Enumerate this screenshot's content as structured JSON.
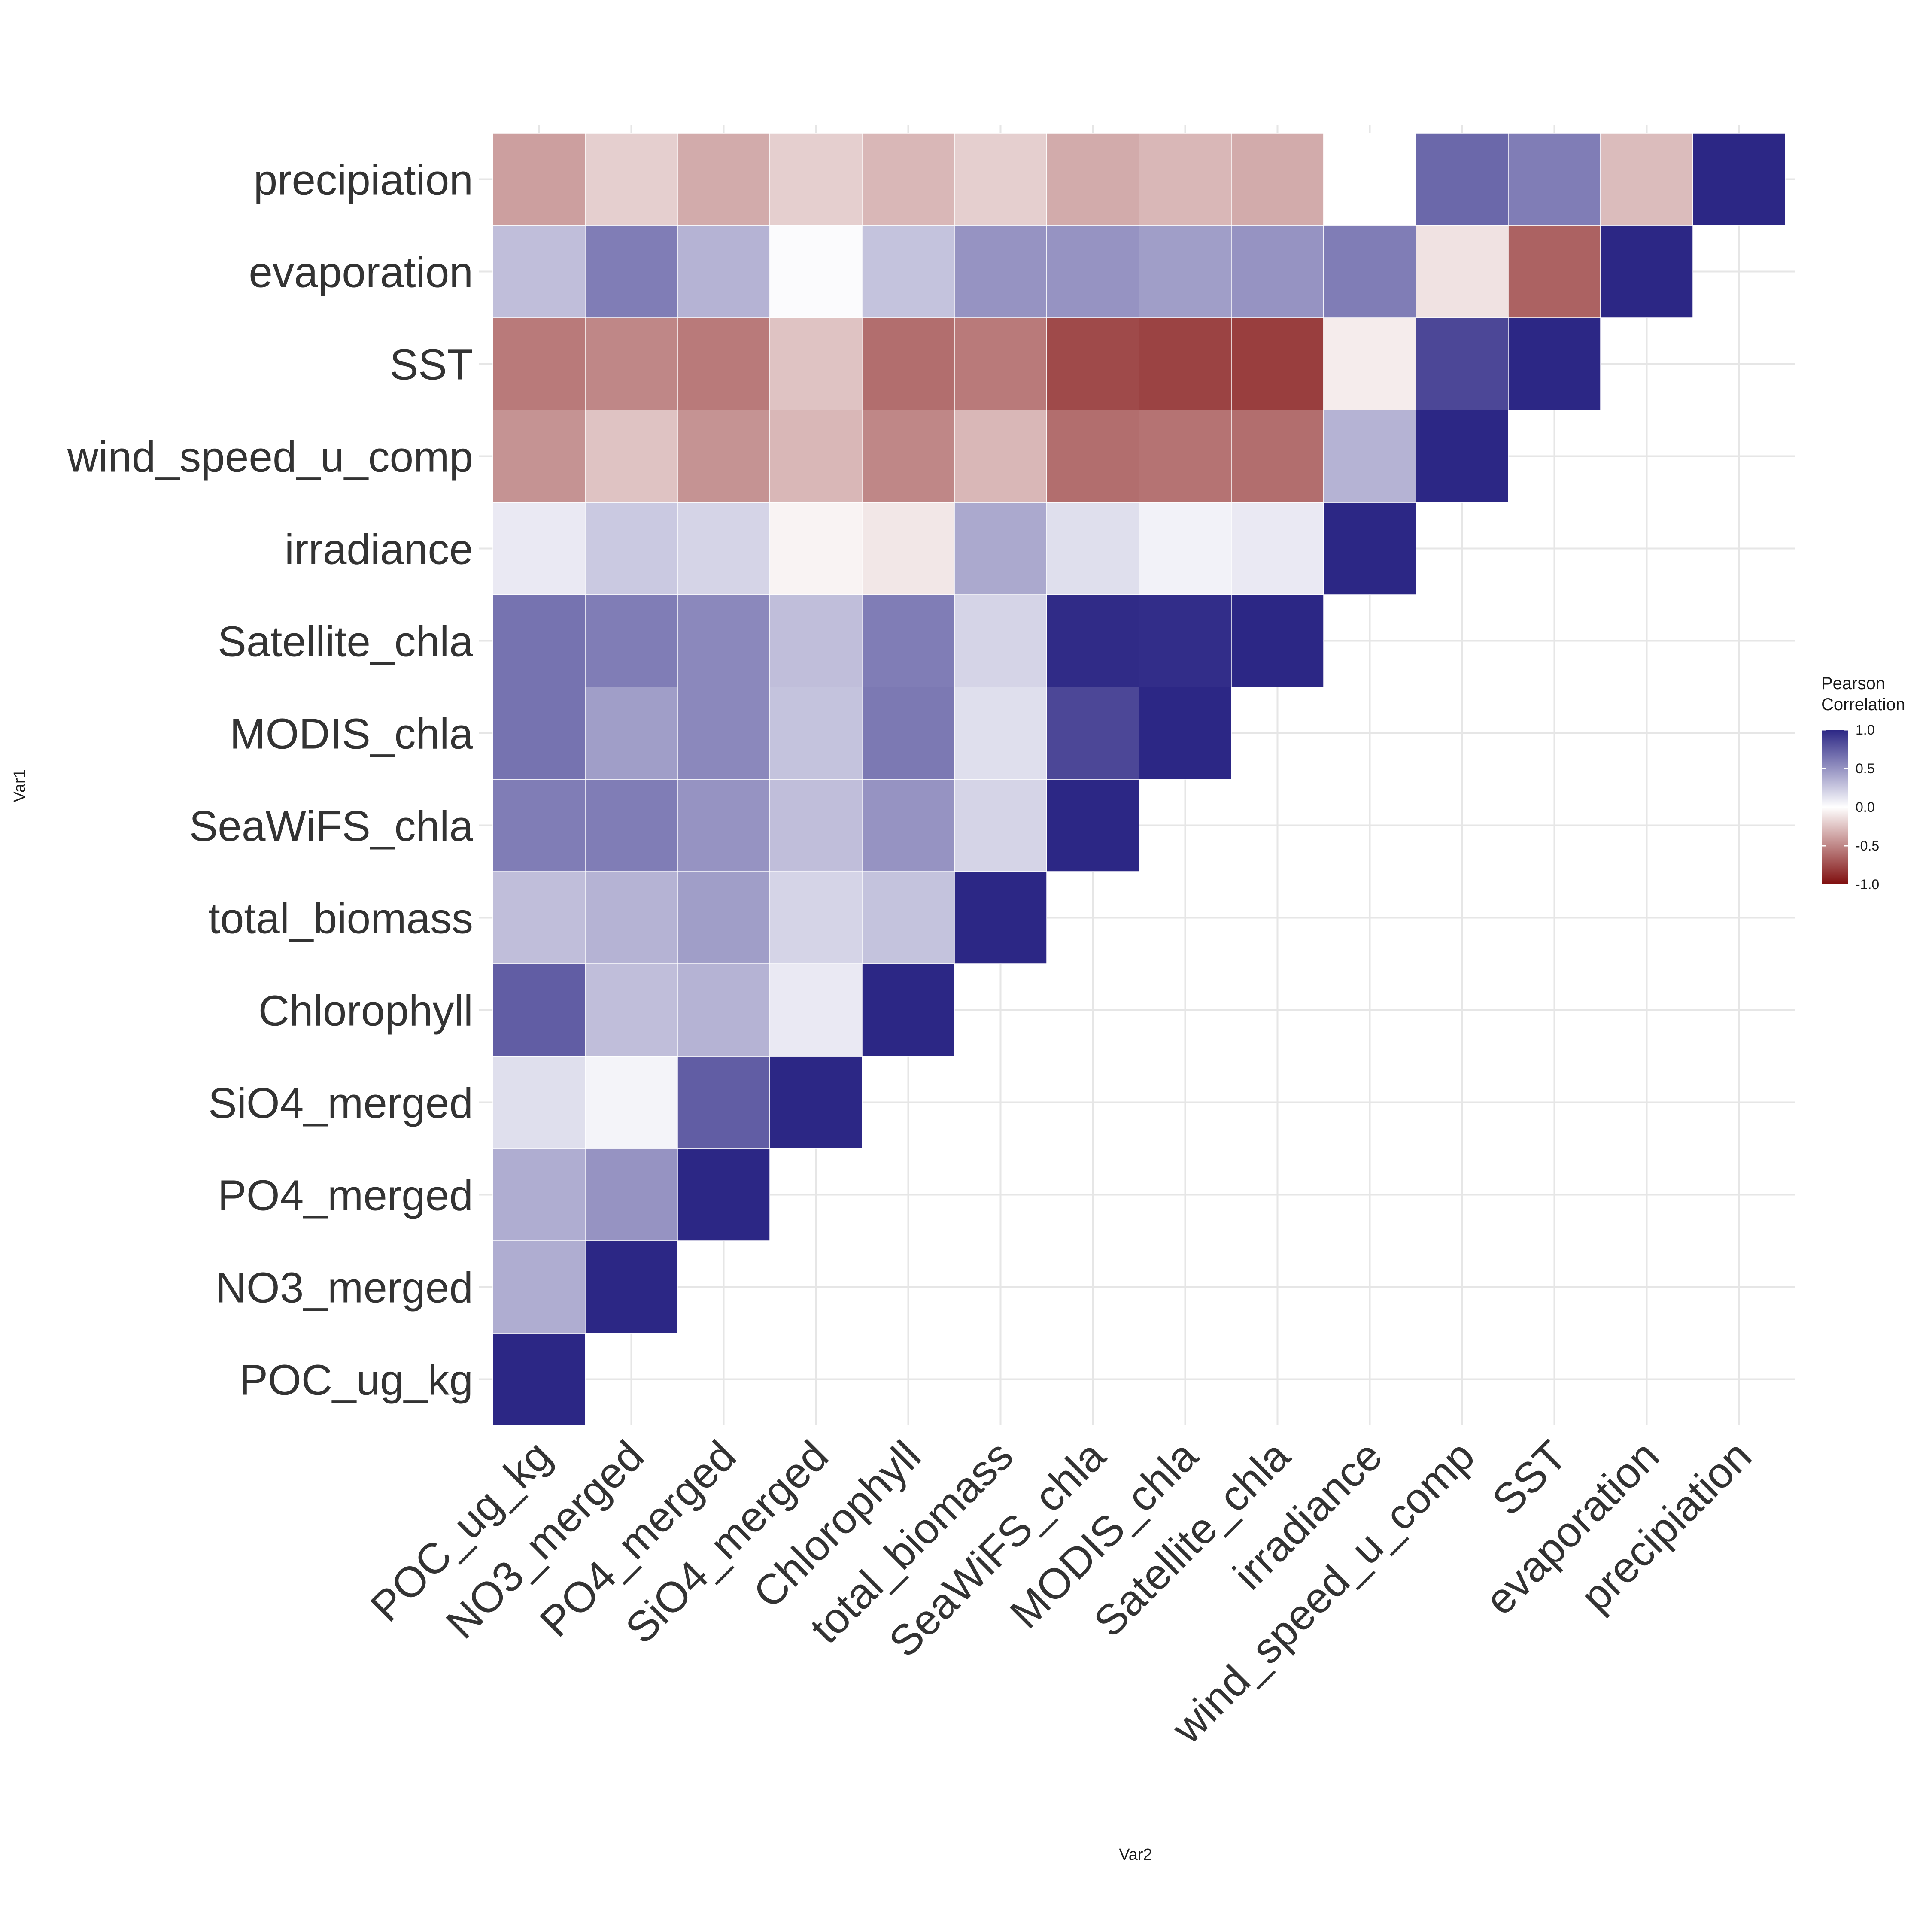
{
  "chart_data": {
    "type": "heatmap",
    "title": "",
    "xlabel": "Var2",
    "ylabel": "Var1",
    "variables": [
      "POC_ug_kg",
      "NO3_merged",
      "PO4_merged",
      "SiO4_merged",
      "Chlorophyll",
      "total_biomass",
      "SeaWiFS_chla",
      "MODIS_chla",
      "Satellite_chla",
      "irradiance",
      "wind_speed_u_comp",
      "SST",
      "evaporation",
      "precipiation"
    ],
    "triangle": "upper",
    "matrix": [
      [
        1.0,
        0.38,
        0.38,
        0.15,
        0.75,
        0.3,
        0.6,
        0.65,
        0.65,
        0.1,
        -0.45,
        -0.55,
        0.3,
        -0.4
      ],
      [
        null,
        1.0,
        0.5,
        0.05,
        0.3,
        0.35,
        0.6,
        0.45,
        0.6,
        0.25,
        -0.25,
        -0.5,
        0.6,
        -0.2
      ],
      [
        null,
        null,
        1.0,
        0.75,
        0.35,
        0.45,
        0.5,
        0.55,
        0.55,
        0.2,
        -0.45,
        -0.55,
        0.35,
        -0.35
      ],
      [
        null,
        null,
        null,
        1.0,
        0.1,
        0.2,
        0.3,
        0.28,
        0.3,
        -0.05,
        -0.3,
        -0.25,
        0.02,
        -0.2
      ],
      [
        null,
        null,
        null,
        null,
        1.0,
        0.28,
        0.5,
        0.62,
        0.6,
        -0.1,
        -0.5,
        -0.6,
        0.28,
        -0.3
      ],
      [
        null,
        null,
        null,
        null,
        null,
        1.0,
        0.2,
        0.15,
        0.2,
        0.4,
        -0.3,
        -0.55,
        0.5,
        -0.2
      ],
      [
        null,
        null,
        null,
        null,
        null,
        null,
        1.0,
        0.85,
        0.98,
        0.15,
        -0.6,
        -0.75,
        0.5,
        -0.35
      ],
      [
        null,
        null,
        null,
        null,
        null,
        null,
        null,
        1.0,
        0.97,
        0.06,
        -0.58,
        -0.78,
        0.45,
        -0.3
      ],
      [
        null,
        null,
        null,
        null,
        null,
        null,
        null,
        null,
        1.0,
        0.1,
        -0.6,
        -0.8,
        0.5,
        -0.35
      ],
      [
        null,
        null,
        null,
        null,
        null,
        null,
        null,
        null,
        null,
        1.0,
        0.35,
        -0.08,
        0.6,
        0.0
      ],
      [
        null,
        null,
        null,
        null,
        null,
        null,
        null,
        null,
        null,
        null,
        1.0,
        0.85,
        -0.12,
        0.7
      ],
      [
        null,
        null,
        null,
        null,
        null,
        null,
        null,
        null,
        null,
        null,
        null,
        1.0,
        -0.65,
        0.6
      ],
      [
        null,
        null,
        null,
        null,
        null,
        null,
        null,
        null,
        null,
        null,
        null,
        null,
        1.0,
        -0.28
      ],
      [
        null,
        null,
        null,
        null,
        null,
        null,
        null,
        null,
        null,
        null,
        null,
        null,
        null,
        1.0
      ]
    ],
    "value_range": [
      -1.0,
      1.0
    ],
    "colors": {
      "low": "#7f0e0e",
      "mid": "#ffffff",
      "high": "#2c2785"
    },
    "legend": {
      "title_lines": [
        "Pearson",
        "Correlation"
      ],
      "ticks": [
        "1.0",
        "0.5",
        "0.0",
        "-0.5",
        "-1.0"
      ],
      "tick_values": [
        1.0,
        0.5,
        0.0,
        -0.5,
        -1.0
      ],
      "placement": "right"
    },
    "grid": true
  }
}
